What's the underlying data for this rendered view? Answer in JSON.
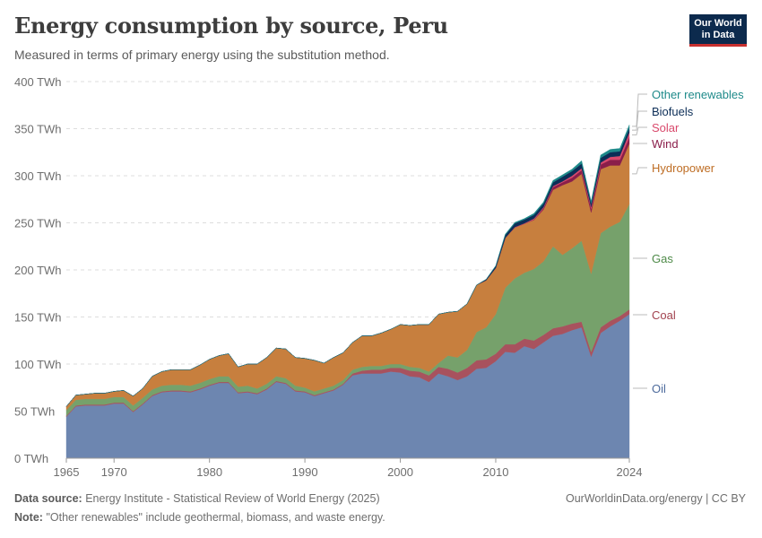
{
  "header": {
    "title": "Energy consumption by source, Peru",
    "subtitle": "Measured in terms of primary energy using the substitution method."
  },
  "logo": {
    "line1": "Our World",
    "line2": "in Data"
  },
  "footer": {
    "source_label": "Data source:",
    "source_text": "Energy Institute - Statistical Review of World Energy (2025)",
    "note_label": "Note:",
    "note_text": "\"Other renewables\" include geothermal, biomass, and waste energy.",
    "right_text": "OurWorldinData.org/energy | CC BY"
  },
  "colors": {
    "Oil": "#6d86b0",
    "Coal": "#a8525e",
    "Gas": "#76a16b",
    "Hydropower": "#c77f3e",
    "Wind": "#8a1e4a",
    "Solar": "#d9496c",
    "Biofuels": "#0c2e57",
    "Other renewables": "#1e8a8a"
  },
  "chart_data": {
    "type": "area",
    "stacked": true,
    "title": "Energy consumption by source, Peru",
    "y_unit": "TWh",
    "ylim": [
      0,
      400
    ],
    "y_ticks": [
      0,
      50,
      100,
      150,
      200,
      250,
      300,
      350,
      400
    ],
    "y_tick_labels": [
      "0 TWh",
      "50 TWh",
      "100 TWh",
      "150 TWh",
      "200 TWh",
      "250 TWh",
      "300 TWh",
      "350 TWh",
      "400 TWh"
    ],
    "xlim": [
      1965,
      2024
    ],
    "x_ticks": [
      1965,
      1970,
      1980,
      1990,
      2000,
      2010,
      2024
    ],
    "grid": true,
    "legend_placement": "right (inline labels)",
    "x": [
      1965,
      1966,
      1967,
      1968,
      1969,
      1970,
      1971,
      1972,
      1973,
      1974,
      1975,
      1976,
      1977,
      1978,
      1979,
      1980,
      1981,
      1982,
      1983,
      1984,
      1985,
      1986,
      1987,
      1988,
      1989,
      1990,
      1991,
      1992,
      1993,
      1994,
      1995,
      1996,
      1997,
      1998,
      1999,
      2000,
      2001,
      2002,
      2003,
      2004,
      2005,
      2006,
      2007,
      2008,
      2009,
      2010,
      2011,
      2012,
      2013,
      2014,
      2015,
      2016,
      2017,
      2018,
      2019,
      2020,
      2021,
      2022,
      2023,
      2024
    ],
    "series": [
      {
        "name": "Oil",
        "values": [
          44,
          55,
          56,
          56,
          56,
          58,
          58,
          49,
          57,
          66,
          70,
          71,
          71,
          70,
          73,
          77,
          80,
          80,
          69,
          70,
          68,
          73,
          81,
          79,
          71,
          70,
          66,
          69,
          72,
          78,
          88,
          90,
          90,
          90,
          92,
          91,
          87,
          86,
          81,
          90,
          87,
          83,
          87,
          95,
          96,
          103,
          113,
          112,
          119,
          116,
          123,
          130,
          132,
          136,
          139,
          108,
          133,
          140,
          146,
          153
        ]
      },
      {
        "name": "Coal",
        "values": [
          1,
          1,
          1,
          1,
          1,
          1,
          1,
          1,
          1,
          1,
          1,
          1,
          1,
          1,
          1,
          1,
          1,
          1,
          1,
          1,
          1,
          1,
          1,
          1,
          1,
          1,
          1,
          1,
          1,
          1,
          2,
          3,
          4,
          4,
          4,
          5,
          6,
          6,
          7,
          7,
          8,
          8,
          9,
          9,
          9,
          8,
          8,
          9,
          8,
          9,
          8,
          8,
          8,
          7,
          6,
          5,
          6,
          6,
          5,
          5
        ]
      },
      {
        "name": "Gas",
        "values": [
          6,
          6,
          6,
          6,
          6,
          6,
          6,
          6,
          6,
          6,
          6,
          6,
          6,
          6,
          6,
          6,
          6,
          6,
          6,
          6,
          5,
          5,
          5,
          5,
          5,
          4,
          4,
          4,
          4,
          4,
          4,
          4,
          4,
          4,
          4,
          4,
          4,
          4,
          4,
          4,
          14,
          16,
          19,
          30,
          34,
          42,
          60,
          70,
          70,
          76,
          78,
          87,
          76,
          80,
          86,
          83,
          100,
          100,
          100,
          112
        ]
      },
      {
        "name": "Hydropower",
        "values": [
          4,
          5,
          5,
          6,
          6,
          6,
          7,
          10,
          10,
          14,
          15,
          16,
          16,
          17,
          19,
          21,
          22,
          24,
          21,
          23,
          26,
          28,
          30,
          31,
          30,
          31,
          33,
          27,
          30,
          29,
          29,
          33,
          32,
          35,
          37,
          42,
          44,
          46,
          50,
          52,
          46,
          49,
          49,
          50,
          50,
          49,
          53,
          54,
          52,
          52,
          55,
          60,
          74,
          71,
          71,
          65,
          68,
          65,
          60,
          64
        ]
      },
      {
        "name": "Wind",
        "values": [
          0,
          0,
          0,
          0,
          0,
          0,
          0,
          0,
          0,
          0,
          0,
          0,
          0,
          0,
          0,
          0,
          0,
          0,
          0,
          0,
          0,
          0,
          0,
          0,
          0,
          0,
          0,
          0,
          0,
          0,
          0,
          0,
          0,
          0,
          0,
          0,
          0,
          0,
          0,
          0,
          0,
          0,
          0,
          0,
          0,
          0,
          0,
          0,
          0,
          0.5,
          1.5,
          3,
          3,
          4,
          4,
          4,
          5,
          6,
          6,
          7
        ]
      },
      {
        "name": "Solar",
        "values": [
          0,
          0,
          0,
          0,
          0,
          0,
          0,
          0,
          0,
          0,
          0,
          0,
          0,
          0,
          0,
          0,
          0,
          0,
          0,
          0,
          0,
          0,
          0,
          0,
          0,
          0,
          0,
          0,
          0,
          0,
          0,
          0,
          0,
          0,
          0,
          0,
          0,
          0,
          0,
          0,
          0,
          0,
          0,
          0,
          0,
          0,
          0,
          0.5,
          0.5,
          1,
          1,
          1,
          1,
          2,
          2,
          2,
          2,
          3,
          4,
          5
        ]
      },
      {
        "name": "Biofuels",
        "values": [
          0,
          0,
          0,
          0,
          0,
          0,
          0,
          0,
          0,
          0,
          0,
          0,
          0,
          0,
          0,
          0,
          0,
          0,
          0,
          0,
          0,
          0,
          0,
          0,
          0,
          0,
          0,
          0,
          0,
          0,
          0,
          0,
          0,
          0,
          0,
          0,
          0,
          0,
          0,
          0,
          0,
          0,
          0,
          0,
          1,
          2,
          3,
          4,
          4,
          4,
          4,
          4,
          5,
          5,
          5,
          4,
          5,
          5,
          5,
          5
        ]
      },
      {
        "name": "Other renewables",
        "values": [
          0,
          0,
          0,
          0,
          0,
          0,
          0,
          0,
          0,
          0,
          0,
          0,
          0,
          0,
          0,
          0,
          0,
          0,
          0,
          0,
          0,
          0,
          0,
          0,
          0,
          0,
          0,
          0,
          0,
          0,
          0,
          0,
          0,
          0,
          0,
          0,
          0,
          0,
          0,
          0,
          0,
          0,
          0,
          0,
          0,
          0.5,
          1,
          1,
          1,
          1.5,
          1.5,
          2,
          2,
          2,
          3,
          2,
          3,
          3,
          3,
          3
        ]
      }
    ]
  }
}
